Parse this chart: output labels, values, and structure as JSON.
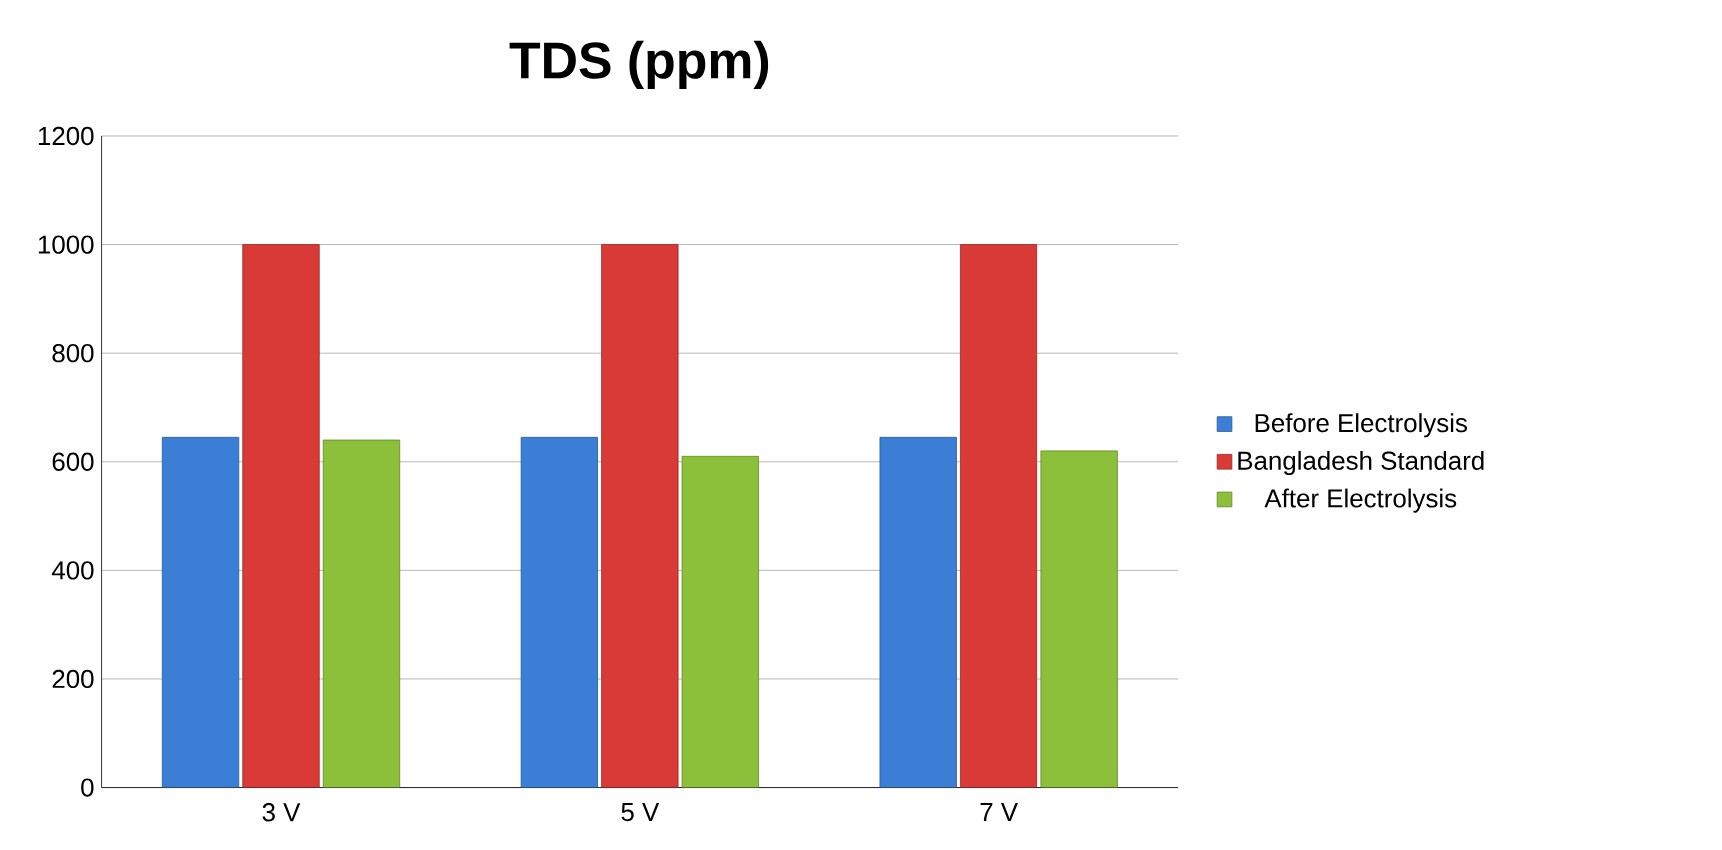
{
  "chart_data": {
    "type": "bar",
    "title": "TDS (ppm)",
    "categories": [
      "3 V",
      "5 V",
      "7 V"
    ],
    "series": [
      {
        "name": "Before Electrolysis",
        "color": "#3a7fd5",
        "values": [
          645,
          645,
          645
        ]
      },
      {
        "name": "Bangladesh Standard",
        "color": "#d93a35",
        "values": [
          1000,
          1000,
          1000
        ]
      },
      {
        "name": "After Electrolysis",
        "color": "#8cbf3a",
        "values": [
          640,
          610,
          620
        ]
      }
    ],
    "ylim": [
      0,
      1200
    ],
    "yticks": [
      0,
      200,
      400,
      600,
      800,
      1000,
      1200
    ],
    "grid": "y",
    "legend": "right"
  }
}
